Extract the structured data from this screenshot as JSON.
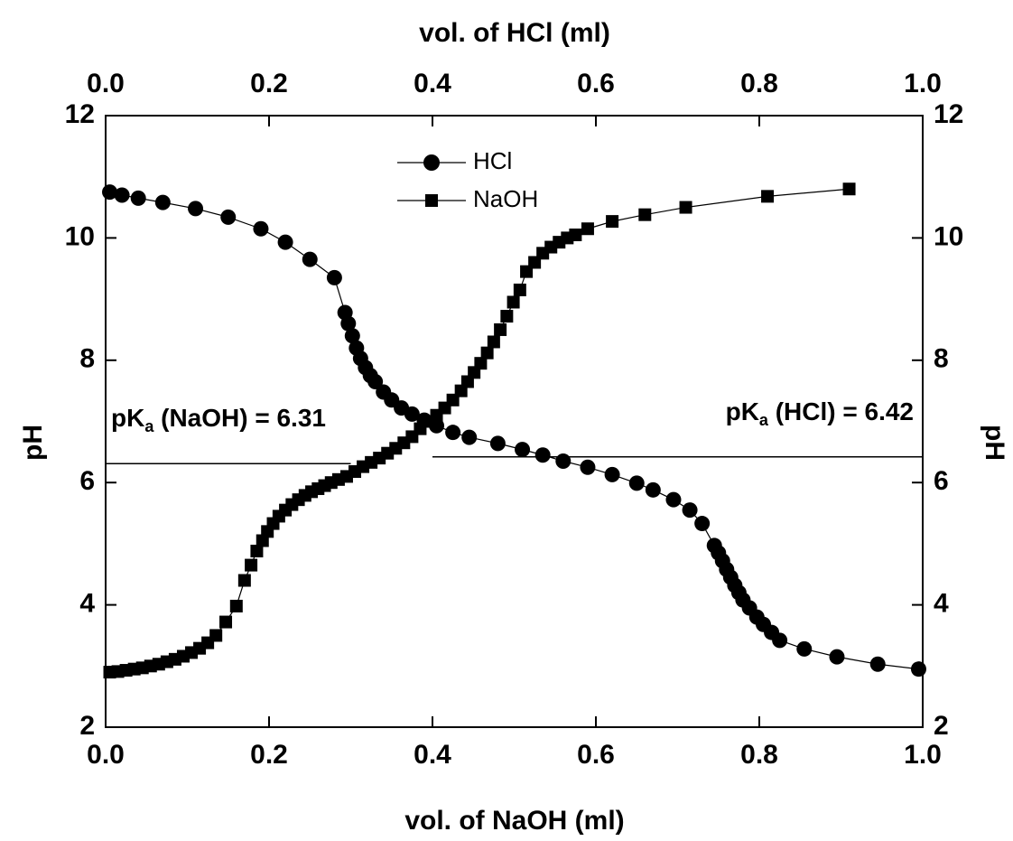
{
  "chart_data": {
    "type": "scatter-line",
    "xlabel": "vol. of NaOH (ml)",
    "x2label": "vol. of HCl (ml)",
    "ylabel": "pH",
    "y2label": "pH",
    "xlim": [
      0,
      1
    ],
    "xticks": [
      {
        "value": 0,
        "label": "0.0"
      },
      0.2,
      0.4,
      0.6,
      0.8,
      {
        "value": 1,
        "label": "1.0"
      }
    ],
    "x2lim": [
      0,
      1
    ],
    "x2ticks": [
      {
        "value": 0,
        "label": "0.0"
      },
      0.2,
      0.4,
      0.6,
      0.8,
      {
        "value": 1,
        "label": "1.0"
      }
    ],
    "ylim": [
      2,
      12
    ],
    "yticks": [
      2,
      4,
      6,
      8,
      10,
      12
    ],
    "y2lim": [
      2,
      12
    ],
    "y2ticks": [
      2,
      4,
      6,
      8,
      10,
      12
    ],
    "series": [
      {
        "name": "HCl",
        "marker": "circle",
        "color": "#000000",
        "axis": "x2",
        "x": [
          0.005,
          0.02,
          0.04,
          0.07,
          0.11,
          0.15,
          0.19,
          0.22,
          0.25,
          0.28,
          0.293,
          0.297,
          0.302,
          0.307,
          0.312,
          0.318,
          0.324,
          0.33,
          0.34,
          0.35,
          0.362,
          0.375,
          0.39,
          0.405,
          0.425,
          0.445,
          0.48,
          0.51,
          0.535,
          0.56,
          0.59,
          0.62,
          0.65,
          0.67,
          0.695,
          0.715,
          0.73,
          0.745,
          0.75,
          0.755,
          0.76,
          0.765,
          0.77,
          0.775,
          0.78,
          0.788,
          0.797,
          0.805,
          0.815,
          0.825,
          0.855,
          0.895,
          0.945,
          0.995
        ],
        "values": [
          10.75,
          10.7,
          10.65,
          10.58,
          10.48,
          10.34,
          10.15,
          9.93,
          9.65,
          9.35,
          8.78,
          8.6,
          8.4,
          8.2,
          8.03,
          7.88,
          7.75,
          7.65,
          7.48,
          7.35,
          7.22,
          7.12,
          7.02,
          6.93,
          6.82,
          6.74,
          6.64,
          6.54,
          6.45,
          6.35,
          6.25,
          6.13,
          5.99,
          5.88,
          5.72,
          5.55,
          5.33,
          4.97,
          4.85,
          4.72,
          4.58,
          4.45,
          4.32,
          4.2,
          4.08,
          3.95,
          3.8,
          3.68,
          3.55,
          3.42,
          3.28,
          3.15,
          3.03,
          2.95
        ]
      },
      {
        "name": "NaOH",
        "marker": "square",
        "color": "#000000",
        "x": [
          0.005,
          0.015,
          0.025,
          0.035,
          0.045,
          0.055,
          0.065,
          0.075,
          0.085,
          0.095,
          0.105,
          0.115,
          0.125,
          0.135,
          0.147,
          0.16,
          0.17,
          0.178,
          0.185,
          0.192,
          0.198,
          0.205,
          0.212,
          0.22,
          0.228,
          0.236,
          0.244,
          0.252,
          0.26,
          0.268,
          0.276,
          0.285,
          0.295,
          0.305,
          0.315,
          0.325,
          0.335,
          0.345,
          0.355,
          0.365,
          0.375,
          0.385,
          0.395,
          0.405,
          0.415,
          0.425,
          0.435,
          0.443,
          0.451,
          0.459,
          0.467,
          0.475,
          0.483,
          0.491,
          0.499,
          0.507,
          0.515,
          0.525,
          0.535,
          0.545,
          0.555,
          0.565,
          0.575,
          0.59,
          0.62,
          0.66,
          0.71,
          0.81,
          0.91
        ],
        "values": [
          2.9,
          2.91,
          2.93,
          2.95,
          2.97,
          3.0,
          3.03,
          3.07,
          3.11,
          3.16,
          3.22,
          3.29,
          3.38,
          3.5,
          3.72,
          3.98,
          4.4,
          4.65,
          4.88,
          5.05,
          5.2,
          5.33,
          5.45,
          5.55,
          5.64,
          5.72,
          5.79,
          5.85,
          5.9,
          5.95,
          6.0,
          6.05,
          6.1,
          6.18,
          6.26,
          6.33,
          6.4,
          6.48,
          6.56,
          6.65,
          6.75,
          6.88,
          7.0,
          7.1,
          7.22,
          7.35,
          7.5,
          7.65,
          7.8,
          7.95,
          8.12,
          8.3,
          8.5,
          8.72,
          8.95,
          9.15,
          9.45,
          9.6,
          9.75,
          9.85,
          9.93,
          10.0,
          10.05,
          10.15,
          10.27,
          10.38,
          10.5,
          10.68,
          10.8
        ]
      }
    ],
    "reference_lines": [
      {
        "text": [
          "pK",
          "a",
          " (NaOH) = 6.31"
        ],
        "value": 6.31,
        "xlim": [
          0,
          0.3
        ],
        "align": "left"
      },
      {
        "text": [
          "pK",
          "a",
          " (HCl) = 6.42"
        ],
        "value": 6.42,
        "xlim": [
          0.4,
          1
        ],
        "align": "right"
      }
    ],
    "legend": "top-center"
  }
}
